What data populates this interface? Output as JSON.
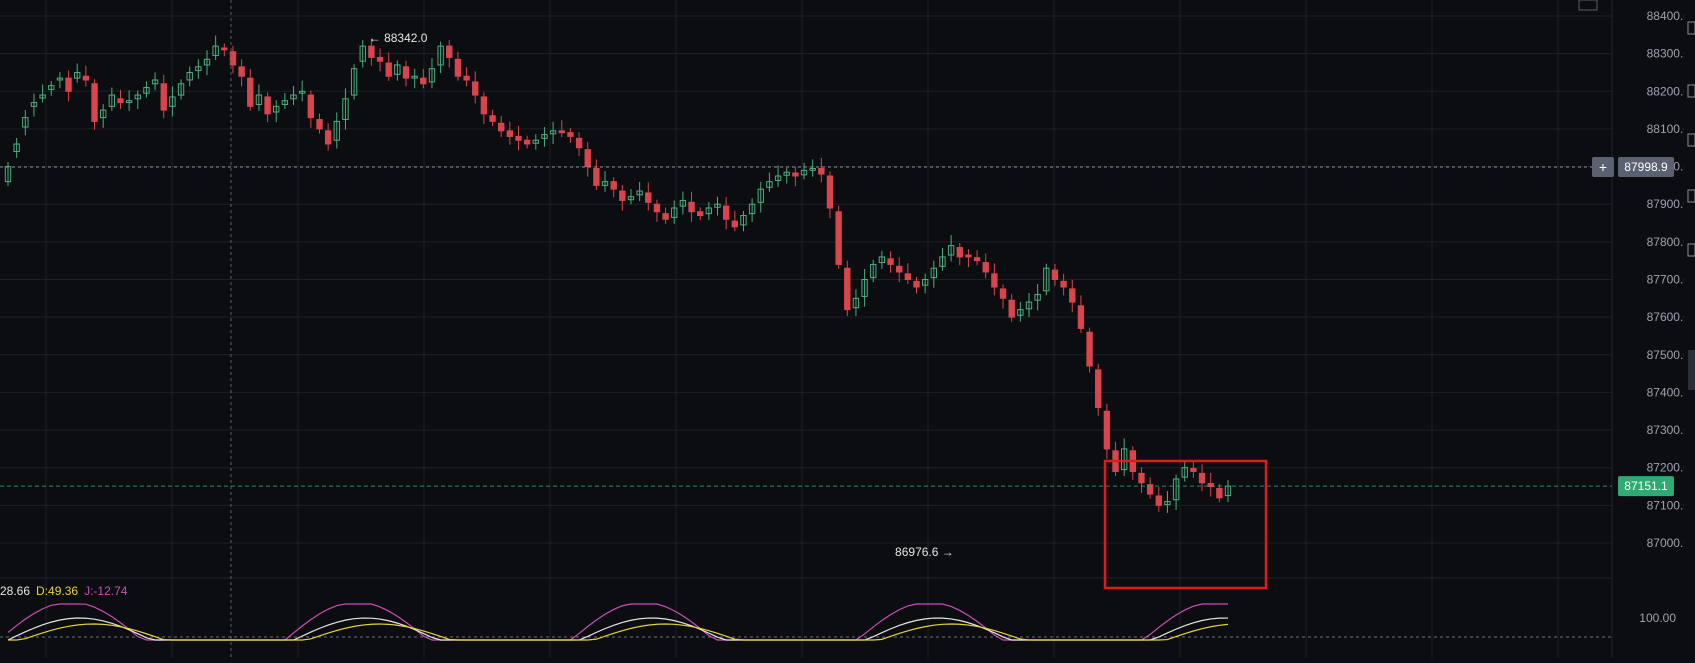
{
  "colors": {
    "background": "#0b0d11",
    "grid": "#1c2027",
    "up": "#4caf7d",
    "down": "#d9454d",
    "axis_text": "#9ea3ab",
    "crosshair_badge": "#5b6170",
    "last_price_badge": "#2faa72",
    "highlight_box": "#e11b1b",
    "k_line": "#e6e6e6",
    "d_line": "#e6d23c",
    "j_line": "#c94fb6"
  },
  "chart_data": {
    "type": "candlestick",
    "ylim": [
      86860,
      88450
    ],
    "y_ticks": [
      "88400.0",
      "88300.0",
      "88200.0",
      "88100.0",
      "88000.0",
      "87900.0",
      "87800.0",
      "87700.0",
      "87600.0",
      "87500.0",
      "87400.0",
      "87300.0",
      "87200.0",
      "87100.0",
      "87000.0"
    ],
    "crosshair_price": "87998.9",
    "last_price": "87151.1",
    "high_marker": {
      "label": "88342.0",
      "index": 41
    },
    "low_marker": {
      "label": "86976.6",
      "index": 110
    },
    "candles_close": [
      88000,
      88060,
      88130,
      88170,
      88190,
      88215,
      88235,
      88200,
      88250,
      88230,
      88120,
      88150,
      88190,
      88170,
      88175,
      88190,
      88210,
      88230,
      88150,
      88185,
      88220,
      88250,
      88265,
      88285,
      88320,
      88310,
      88270,
      88240,
      88160,
      88190,
      88140,
      88160,
      88175,
      88190,
      88200,
      88130,
      88100,
      88060,
      88120,
      88180,
      88260,
      88320,
      88290,
      88280,
      88240,
      88270,
      88235,
      88240,
      88220,
      88260,
      88320,
      88290,
      88240,
      88230,
      88190,
      88140,
      88120,
      88095,
      88080,
      88070,
      88060,
      88070,
      88085,
      88095,
      88090,
      88080,
      88050,
      88000,
      87950,
      87960,
      87940,
      87910,
      87920,
      87935,
      87905,
      87880,
      87860,
      87890,
      87910,
      87880,
      87870,
      87890,
      87900,
      87860,
      87840,
      87870,
      87900,
      87940,
      87960,
      87975,
      87985,
      87975,
      87990,
      87995,
      87980,
      87890,
      87740,
      87620,
      87650,
      87700,
      87740,
      87760,
      87740,
      87720,
      87700,
      87680,
      87700,
      87730,
      87760,
      87790,
      87760,
      87760,
      87750,
      87720,
      87680,
      87650,
      87600,
      87620,
      87640,
      87660,
      87730,
      87700,
      87680,
      87640,
      87570,
      87470,
      87360,
      87250,
      87190,
      87250,
      87190,
      87160,
      87130,
      87100,
      87110,
      87170,
      87200,
      87190,
      87160,
      87150,
      87120,
      87151
    ],
    "candles_open_offset": [
      -40,
      -20,
      -25,
      -10,
      -8,
      -10,
      -5,
      35,
      -15,
      10,
      100,
      -20,
      -30,
      10,
      -5,
      -10,
      -15,
      -10,
      70,
      -25,
      -30,
      -20,
      -10,
      -15,
      -25,
      5,
      35,
      25,
      75,
      -25,
      45,
      -15,
      -10,
      -10,
      -5,
      60,
      25,
      35,
      -50,
      -55,
      -70,
      -40,
      30,
      10,
      35,
      -25,
      30,
      -5,
      15,
      -35,
      -50,
      30,
      45,
      10,
      35,
      45,
      15,
      20,
      15,
      10,
      10,
      -8,
      -10,
      -8,
      5,
      10,
      25,
      45,
      45,
      -10,
      20,
      25,
      -8,
      -10,
      25,
      20,
      15,
      -25,
      -15,
      25,
      10,
      -15,
      -8,
      35,
      15,
      -25,
      -25,
      -35,
      -15,
      -12,
      -8,
      8,
      -12,
      -5,
      15,
      85,
      140,
      110,
      -25,
      -45,
      -35,
      -15,
      15,
      15,
      15,
      15,
      -15,
      -25,
      -25,
      -25,
      25,
      5,
      8,
      25,
      35,
      25,
      45,
      -15,
      -18,
      -15,
      -60,
      25,
      15,
      35,
      60,
      90,
      100,
      100,
      55,
      -55,
      55,
      25,
      25,
      25,
      -8,
      -55,
      -25,
      8,
      25,
      8,
      25,
      -25
    ]
  },
  "indicator": {
    "k_label": "28.66",
    "d_label": "D:49.36",
    "j_label": "J:-12.74",
    "level_label": "100.00"
  }
}
